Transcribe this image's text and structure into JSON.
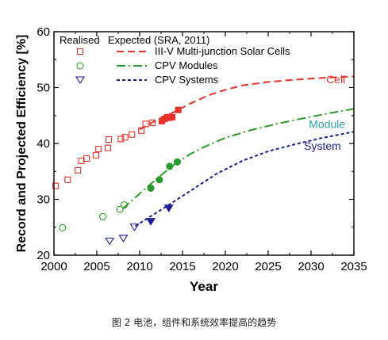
{
  "chart_data": {
    "type": "scatter",
    "xlabel": "Year",
    "ylabel": "Record and Projected Efficiency [%]",
    "xlim": [
      2000,
      2035
    ],
    "ylim": [
      20,
      60
    ],
    "x_ticks": [
      2000,
      2005,
      2010,
      2015,
      2020,
      2025,
      2030,
      2035
    ],
    "y_ticks": [
      20,
      30,
      40,
      50,
      60
    ],
    "legend": {
      "header_realised": "Realised",
      "header_expected": "Expected (SRA, 2011)",
      "placement": "top-left"
    },
    "series": [
      {
        "name": "III-V Multi-junction Solar Cells",
        "annotation": "Cell",
        "color": "#e8302a",
        "marker": "square",
        "realised_open": [
          [
            2000.2,
            32.4
          ],
          [
            2001.6,
            33.5
          ],
          [
            2002.8,
            35.2
          ],
          [
            2003.2,
            36.9
          ],
          [
            2003.8,
            37.3
          ],
          [
            2004.9,
            37.9
          ],
          [
            2005.2,
            39.0
          ],
          [
            2006.3,
            39.2
          ],
          [
            2006.4,
            40.7
          ],
          [
            2007.8,
            40.8
          ],
          [
            2008.3,
            41.1
          ],
          [
            2009.1,
            41.6
          ],
          [
            2010.2,
            42.3
          ],
          [
            2010.7,
            43.5
          ],
          [
            2011.5,
            43.7
          ]
        ],
        "realised_filled": [
          [
            2012.6,
            44.0
          ],
          [
            2012.9,
            44.4
          ],
          [
            2013.2,
            44.7
          ],
          [
            2013.4,
            44.6
          ],
          [
            2013.8,
            44.7
          ],
          [
            2014.5,
            46.0
          ]
        ],
        "expected": [
          [
            2010,
            42.5
          ],
          [
            2012,
            44.2
          ],
          [
            2014,
            45.6
          ],
          [
            2016,
            47.2
          ],
          [
            2018,
            48.6
          ],
          [
            2020,
            49.6
          ],
          [
            2022,
            50.4
          ],
          [
            2025,
            51.0
          ],
          [
            2028,
            51.4
          ],
          [
            2031,
            51.7
          ],
          [
            2035,
            52.0
          ]
        ]
      },
      {
        "name": "CPV Modules",
        "annotation": "Module",
        "color": "#2a9a2a",
        "annotation_color": "#2aa0a0",
        "marker": "circle",
        "realised_open": [
          [
            2001.0,
            24.9
          ],
          [
            2005.7,
            26.9
          ],
          [
            2007.7,
            28.2
          ],
          [
            2008.2,
            29.0
          ]
        ],
        "realised_filled": [
          [
            2011.3,
            32.0
          ],
          [
            2012.3,
            33.5
          ],
          [
            2013.5,
            35.9
          ],
          [
            2014.4,
            36.7
          ]
        ],
        "expected": [
          [
            2008,
            28.3
          ],
          [
            2010,
            31.0
          ],
          [
            2012,
            33.7
          ],
          [
            2014,
            36.2
          ],
          [
            2016,
            38.2
          ],
          [
            2018,
            39.7
          ],
          [
            2020,
            41.0
          ],
          [
            2023,
            42.4
          ],
          [
            2026,
            43.5
          ],
          [
            2030,
            44.8
          ],
          [
            2035,
            46.2
          ]
        ]
      },
      {
        "name": "CPV Systems",
        "annotation": "System",
        "color": "#1a1e96",
        "marker": "triangle-down",
        "realised_open": [
          [
            2006.5,
            22.5
          ],
          [
            2008.1,
            23.0
          ],
          [
            2009.4,
            25.0
          ]
        ],
        "realised_filled": [
          [
            2011.3,
            26.0
          ],
          [
            2013.4,
            28.4
          ]
        ],
        "expected": [
          [
            2009.5,
            25.2
          ],
          [
            2011,
            26.7
          ],
          [
            2013,
            28.6
          ],
          [
            2015,
            30.6
          ],
          [
            2017,
            32.6
          ],
          [
            2019,
            34.6
          ],
          [
            2022,
            36.9
          ],
          [
            2025,
            38.6
          ],
          [
            2028,
            39.8
          ],
          [
            2031,
            40.9
          ],
          [
            2035,
            42.1
          ]
        ]
      }
    ]
  },
  "caption": "图 2   电池，组件和系统效率提高的趋势"
}
